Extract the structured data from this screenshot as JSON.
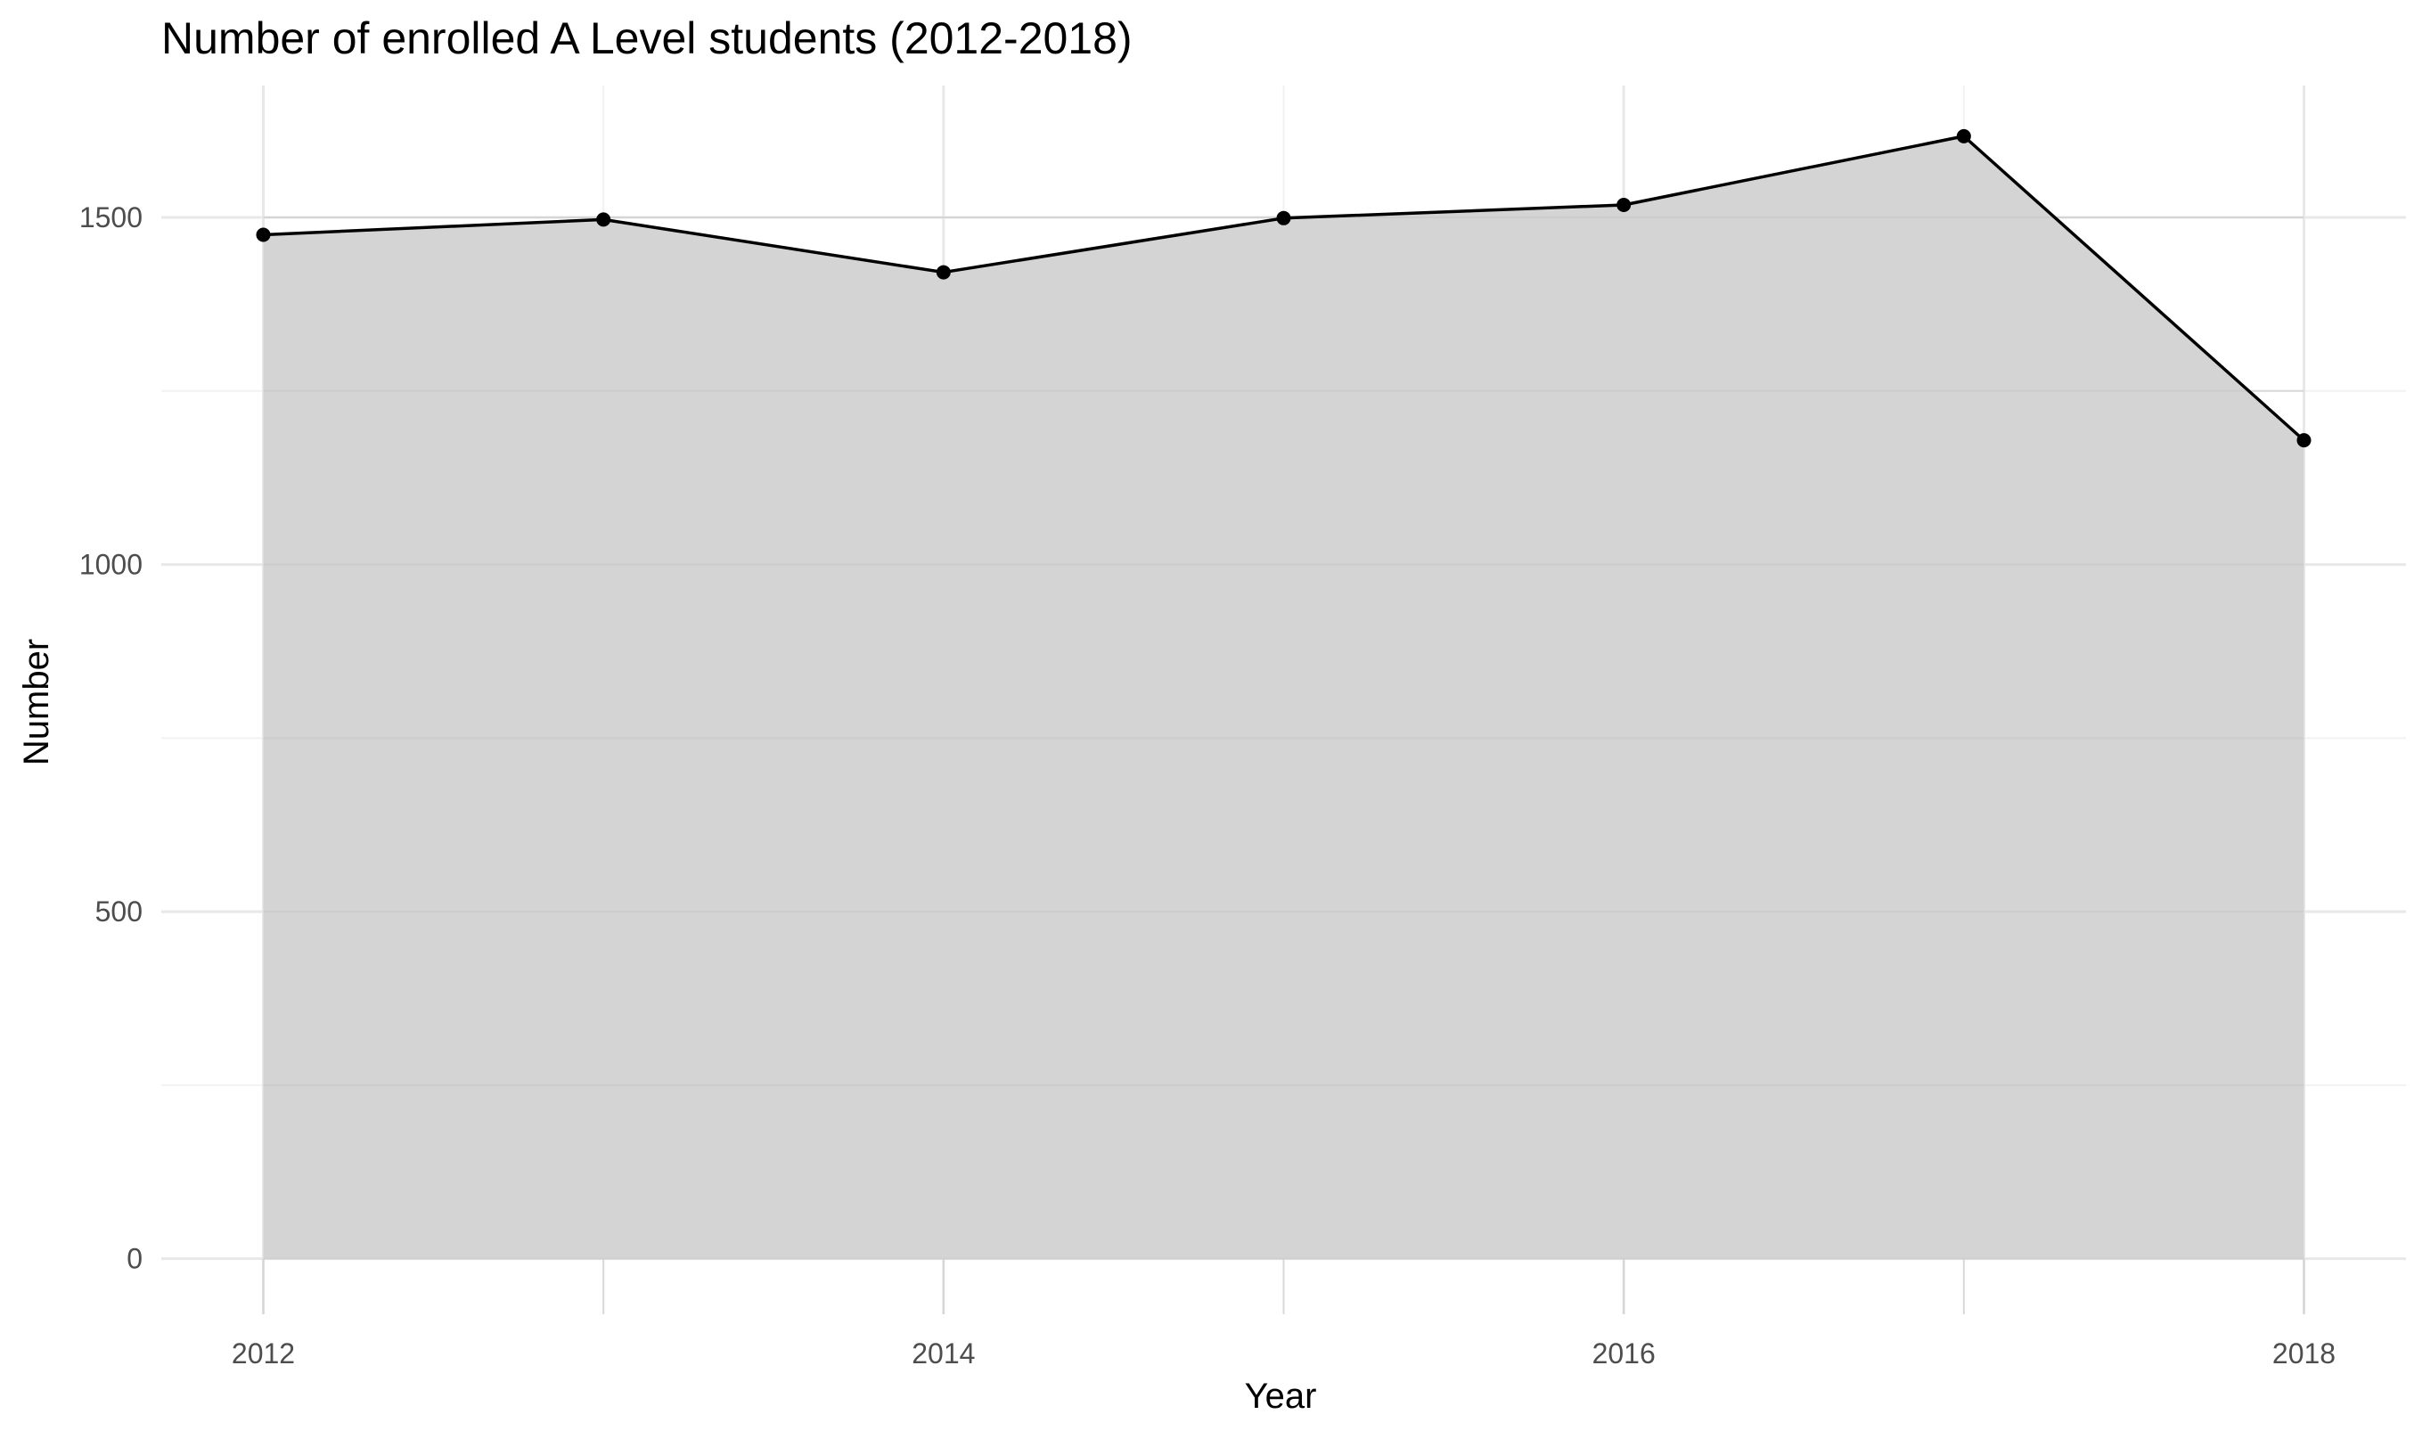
{
  "chart_data": {
    "type": "area",
    "title": "Number of enrolled A Level students (2012-2018)",
    "xlabel": "Year",
    "ylabel": "Number",
    "x": [
      2012,
      2013,
      2014,
      2015,
      2016,
      2017,
      2018
    ],
    "values": [
      1475,
      1497,
      1421,
      1499,
      1518,
      1617,
      1179
    ],
    "xlim": [
      2011.7,
      2018.3
    ],
    "ylim": [
      -80,
      1690
    ],
    "x_ticks": [
      2012,
      2014,
      2016,
      2018
    ],
    "x_tick_labels": [
      "2012",
      "2014",
      "2016",
      "2018"
    ],
    "x_minor_ticks": [
      2013,
      2015,
      2017
    ],
    "y_ticks": [
      0,
      500,
      1000,
      1500
    ],
    "y_tick_labels": [
      "0",
      "500",
      "1000",
      "1500"
    ],
    "y_minor_ticks": [
      250,
      750,
      1250
    ],
    "grid": true,
    "legend": "none",
    "colors": {
      "area_fill": "#d4d4d4",
      "line": "#000000",
      "point": "#000000",
      "grid_major": "#e8e8e8",
      "grid_minor": "#f2f2f2",
      "background": "#ffffff"
    }
  }
}
